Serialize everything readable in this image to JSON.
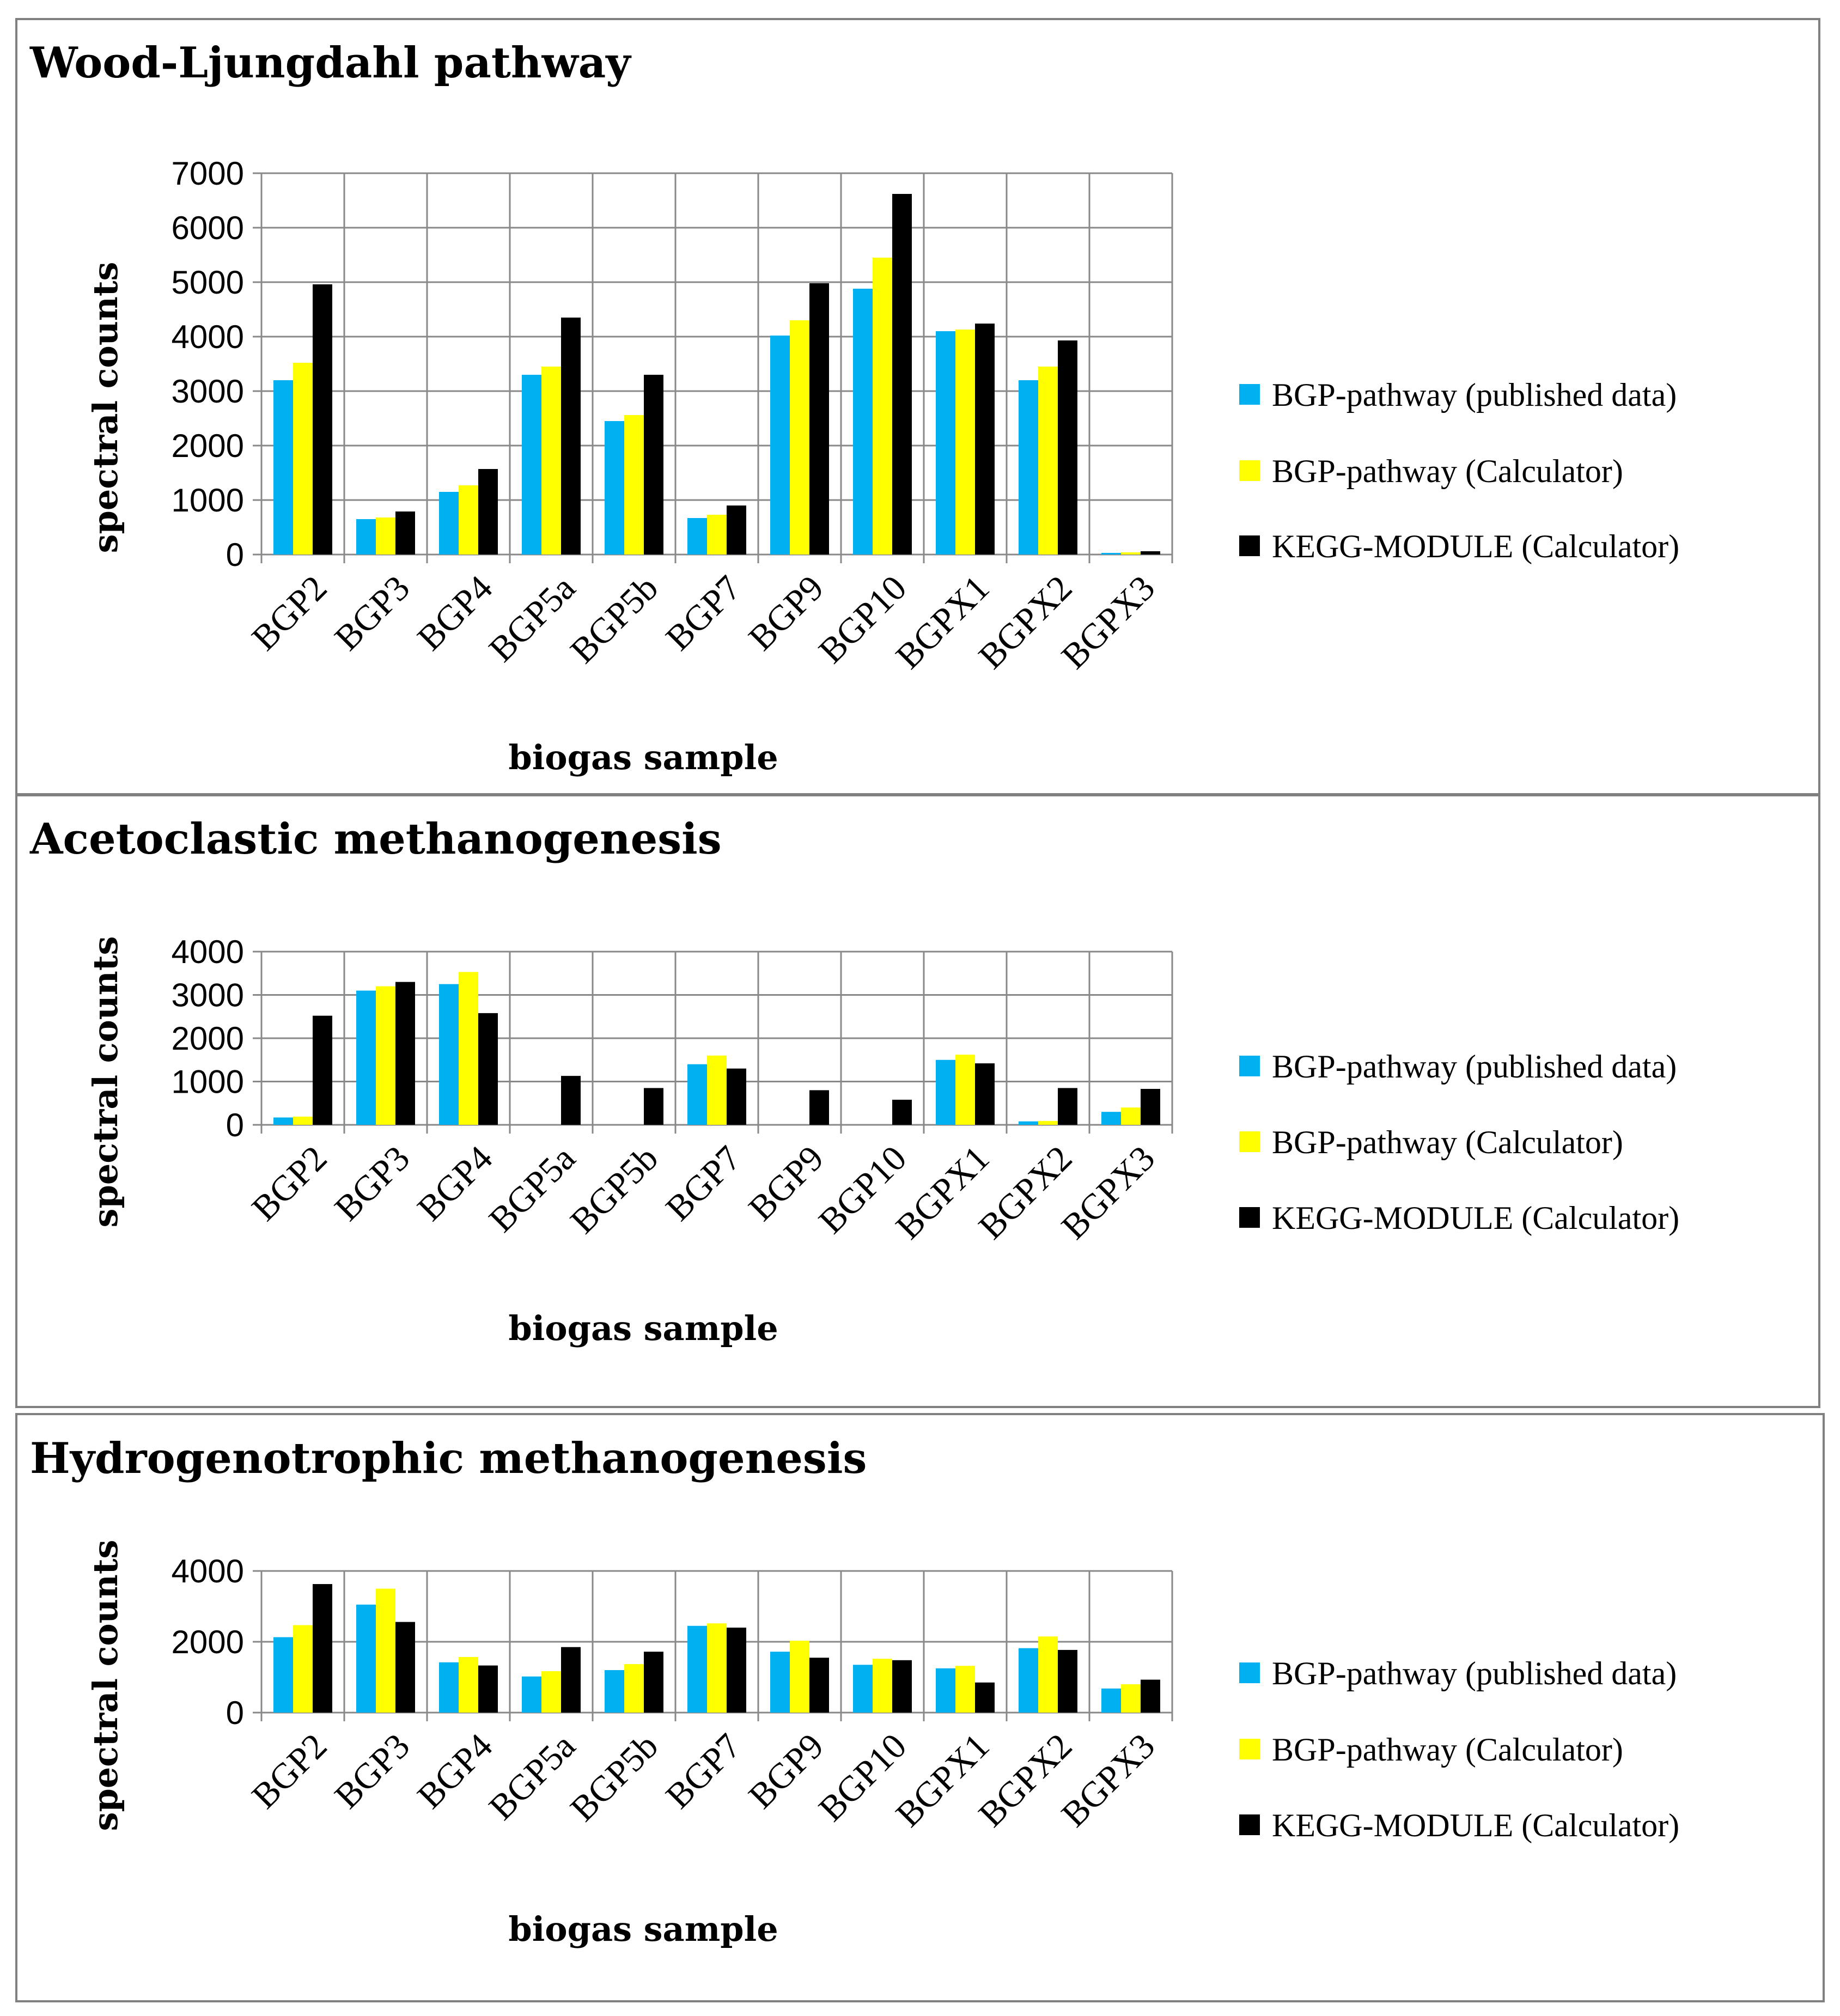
{
  "chart_data": [
    {
      "type": "bar",
      "title": "Wood-Ljungdahl pathway",
      "xlabel": "biogas sample",
      "ylabel": "spectral counts",
      "ylim": [
        0,
        7000
      ],
      "yticks": [
        0,
        1000,
        2000,
        3000,
        4000,
        5000,
        6000,
        7000
      ],
      "grid": true,
      "legend_position": "right",
      "categories": [
        "BGP2",
        "BGP3",
        "BGP4",
        "BGP5a",
        "BGP5b",
        "BGP7",
        "BGP9",
        "BGP10",
        "BGPX1",
        "BGPX2",
        "BGPX3"
      ],
      "series": [
        {
          "name": "BGP-pathway (published data)",
          "color": "#00B0F0",
          "values": [
            3200,
            650,
            1150,
            3300,
            2450,
            670,
            4020,
            4880,
            4100,
            3200,
            30
          ]
        },
        {
          "name": "BGP-pathway (Calculator)",
          "color": "#FFFF00",
          "values": [
            3520,
            680,
            1270,
            3450,
            2560,
            730,
            4300,
            5450,
            4130,
            3450,
            40
          ]
        },
        {
          "name": "KEGG-MODULE (Calculator)",
          "color": "#000000",
          "values": [
            4960,
            790,
            1570,
            4350,
            3300,
            900,
            4980,
            6620,
            4240,
            3930,
            60
          ]
        }
      ]
    },
    {
      "type": "bar",
      "title": "Acetoclastic methanogenesis",
      "xlabel": "biogas sample",
      "ylabel": "spectral counts",
      "ylim": [
        0,
        4000
      ],
      "yticks": [
        0,
        1000,
        2000,
        3000,
        4000
      ],
      "grid": true,
      "legend_position": "right",
      "categories": [
        "BGP2",
        "BGP3",
        "BGP4",
        "BGP5a",
        "BGP5b",
        "BGP7",
        "BGP9",
        "BGP10",
        "BGPX1",
        "BGPX2",
        "BGPX3"
      ],
      "series": [
        {
          "name": "BGP-pathway (published data)",
          "color": "#00B0F0",
          "values": [
            170,
            3100,
            3250,
            0,
            0,
            1400,
            0,
            0,
            1500,
            80,
            300
          ]
        },
        {
          "name": "BGP-pathway (Calculator)",
          "color": "#FFFF00",
          "values": [
            190,
            3200,
            3530,
            0,
            0,
            1600,
            0,
            0,
            1620,
            90,
            400
          ]
        },
        {
          "name": "KEGG-MODULE (Calculator)",
          "color": "#000000",
          "values": [
            2520,
            3300,
            2580,
            1130,
            850,
            1300,
            800,
            580,
            1420,
            850,
            830
          ]
        }
      ]
    },
    {
      "type": "bar",
      "title": "Hydrogenotrophic methanogenesis",
      "xlabel": "biogas sample",
      "ylabel": "spectral counts",
      "ylim": [
        0,
        4000
      ],
      "yticks": [
        0,
        2000,
        4000
      ],
      "grid": true,
      "legend_position": "right",
      "categories": [
        "BGP2",
        "BGP3",
        "BGP4",
        "BGP5a",
        "BGP5b",
        "BGP7",
        "BGP9",
        "BGP10",
        "BGPX1",
        "BGPX2",
        "BGPX3"
      ],
      "series": [
        {
          "name": "BGP-pathway (published data)",
          "color": "#00B0F0",
          "values": [
            2130,
            3050,
            1420,
            1020,
            1200,
            2450,
            1720,
            1350,
            1250,
            1820,
            680
          ]
        },
        {
          "name": "BGP-pathway (Calculator)",
          "color": "#FFFF00",
          "values": [
            2470,
            3500,
            1570,
            1170,
            1370,
            2520,
            2030,
            1520,
            1320,
            2150,
            800
          ]
        },
        {
          "name": "KEGG-MODULE (Calculator)",
          "color": "#000000",
          "values": [
            3630,
            2560,
            1330,
            1850,
            1720,
            2400,
            1550,
            1480,
            850,
            1770,
            930
          ]
        }
      ]
    }
  ]
}
